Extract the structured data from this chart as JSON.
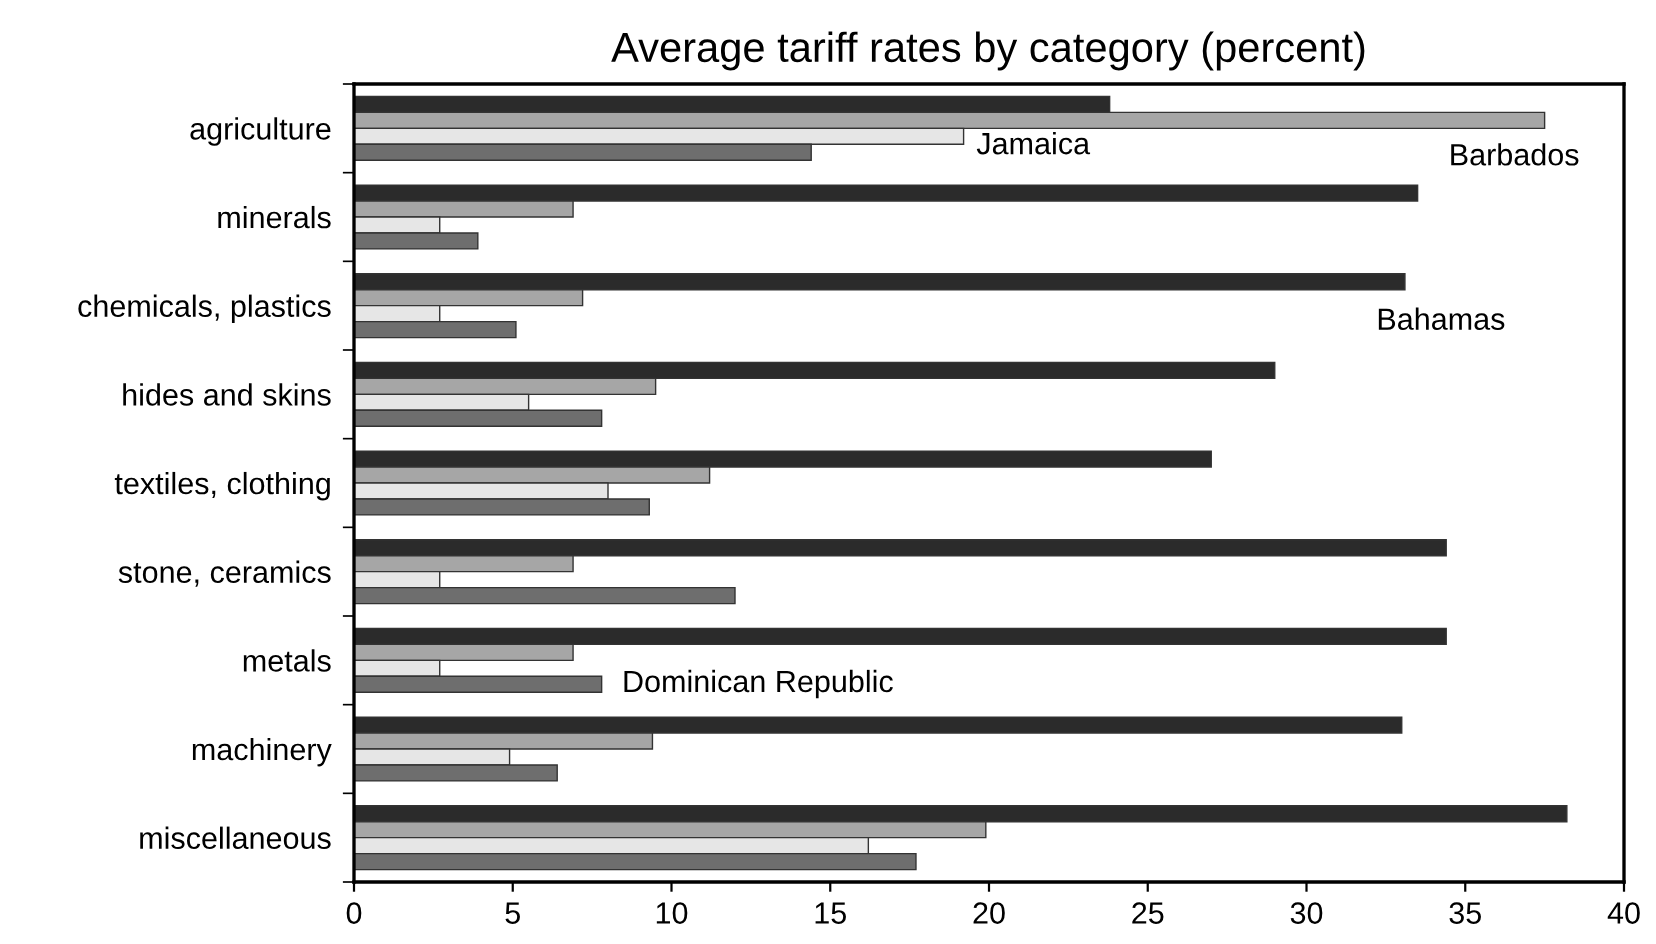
{
  "chart_data": {
    "type": "bar",
    "orientation": "horizontal",
    "title": "Average tariff rates by category (percent)",
    "categories": [
      "agriculture",
      "minerals",
      "chemicals, plastics",
      "hides and skins",
      "textiles, clothing",
      "stone, ceramics",
      "metals",
      "machinery",
      "miscellaneous"
    ],
    "series": [
      {
        "color": "#2b2b2b",
        "values": [
          23.8,
          33.5,
          33.1,
          29.0,
          27.0,
          34.4,
          34.4,
          33.0,
          38.2
        ]
      },
      {
        "color": "#a6a6a6",
        "values": [
          37.5,
          6.9,
          7.2,
          9.5,
          11.2,
          6.9,
          6.9,
          9.4,
          19.9
        ]
      },
      {
        "color": "#e6e6e6",
        "values": [
          19.2,
          2.7,
          2.7,
          5.5,
          8.0,
          2.7,
          2.7,
          4.9,
          16.2
        ]
      },
      {
        "color": "#6e6e6e",
        "values": [
          14.4,
          3.9,
          5.1,
          7.8,
          9.3,
          12.0,
          7.8,
          6.4,
          17.7
        ]
      }
    ],
    "annotations": [
      "Jamaica",
      "Barbados",
      "Bahamas",
      "Dominican Republic"
    ],
    "xlim": [
      0,
      40
    ],
    "xticks": [
      0,
      5,
      10,
      15,
      20,
      25,
      30,
      35,
      40
    ],
    "grid": false,
    "legend": false
  }
}
